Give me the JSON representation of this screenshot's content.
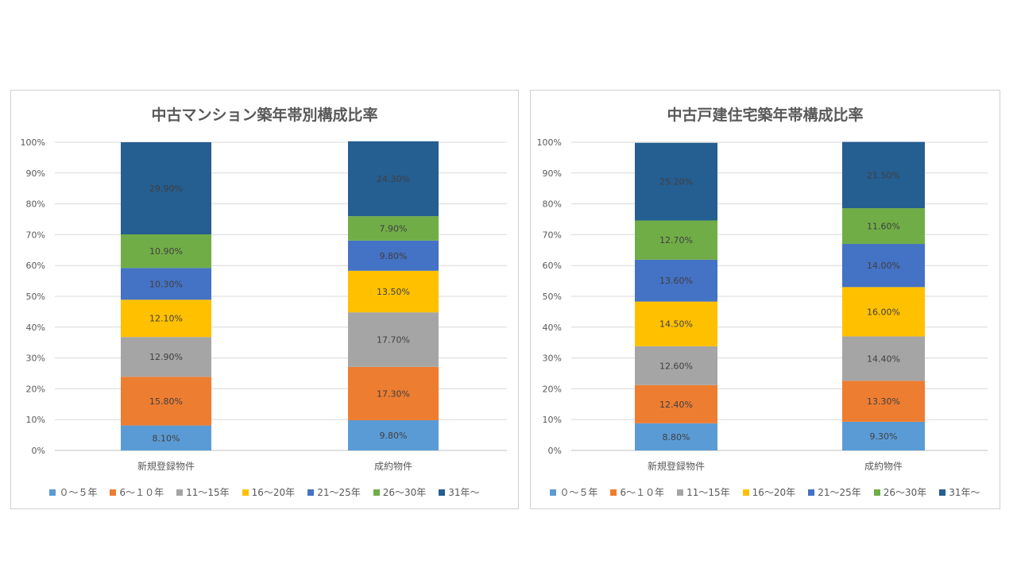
{
  "chart_data": [
    {
      "type": "bar",
      "stacked": true,
      "title": "中古マンション築年帯別構成比率",
      "categories": [
        "新規登録物件",
        "成約物件"
      ],
      "ylim": [
        0,
        100
      ],
      "y_ticks": [
        "0%",
        "10%",
        "20%",
        "30%",
        "40%",
        "50%",
        "60%",
        "70%",
        "80%",
        "90%",
        "100%"
      ],
      "grid": true,
      "legend_position": "bottom",
      "series": [
        {
          "name": "０～５年",
          "color": "#5B9BD5",
          "values": [
            8.1,
            9.8
          ],
          "labels": [
            "8.10%",
            "9.80%"
          ]
        },
        {
          "name": "6～１０年",
          "color": "#ED7D31",
          "values": [
            15.8,
            17.3
          ],
          "labels": [
            "15.80%",
            "17.30%"
          ]
        },
        {
          "name": "11～15年",
          "color": "#A5A5A5",
          "values": [
            12.9,
            17.7
          ],
          "labels": [
            "12.90%",
            "17.70%"
          ]
        },
        {
          "name": "16～20年",
          "color": "#FFC000",
          "values": [
            12.1,
            13.5
          ],
          "labels": [
            "12.10%",
            "13.50%"
          ]
        },
        {
          "name": "21～25年",
          "color": "#4472C4",
          "values": [
            10.3,
            9.8
          ],
          "labels": [
            "10.30%",
            "9.80%"
          ]
        },
        {
          "name": "26～30年",
          "color": "#70AD47",
          "values": [
            10.9,
            7.9
          ],
          "labels": [
            "10.90%",
            "7.90%"
          ]
        },
        {
          "name": "31年～",
          "color": "#255E91",
          "values": [
            29.9,
            24.3
          ],
          "labels": [
            "29.90%",
            "24.30%"
          ]
        }
      ]
    },
    {
      "type": "bar",
      "stacked": true,
      "title": "中古戸建住宅築年帯構成比率",
      "categories": [
        "新規登録物件",
        "成約物件"
      ],
      "ylim": [
        0,
        100
      ],
      "y_ticks": [
        "0%",
        "10%",
        "20%",
        "30%",
        "40%",
        "50%",
        "60%",
        "70%",
        "80%",
        "90%",
        "100%"
      ],
      "grid": true,
      "legend_position": "bottom",
      "series": [
        {
          "name": "０～５年",
          "color": "#5B9BD5",
          "values": [
            8.8,
            9.3
          ],
          "labels": [
            "8.80%",
            "9.30%"
          ]
        },
        {
          "name": "6～１０年",
          "color": "#ED7D31",
          "values": [
            12.4,
            13.3
          ],
          "labels": [
            "12.40%",
            "13.30%"
          ]
        },
        {
          "name": "11～15年",
          "color": "#A5A5A5",
          "values": [
            12.6,
            14.4
          ],
          "labels": [
            "12.60%",
            "14.40%"
          ]
        },
        {
          "name": "16～20年",
          "color": "#FFC000",
          "values": [
            14.5,
            16.0
          ],
          "labels": [
            "14.50%",
            "16.00%"
          ]
        },
        {
          "name": "21～25年",
          "color": "#4472C4",
          "values": [
            13.6,
            14.0
          ],
          "labels": [
            "13.60%",
            "14.00%"
          ]
        },
        {
          "name": "26～30年",
          "color": "#70AD47",
          "values": [
            12.7,
            11.6
          ],
          "labels": [
            "12.70%",
            "11.60%"
          ]
        },
        {
          "name": "31年～",
          "color": "#255E91",
          "values": [
            25.2,
            21.5
          ],
          "labels": [
            "25.20%",
            "21.50%"
          ]
        }
      ]
    }
  ]
}
